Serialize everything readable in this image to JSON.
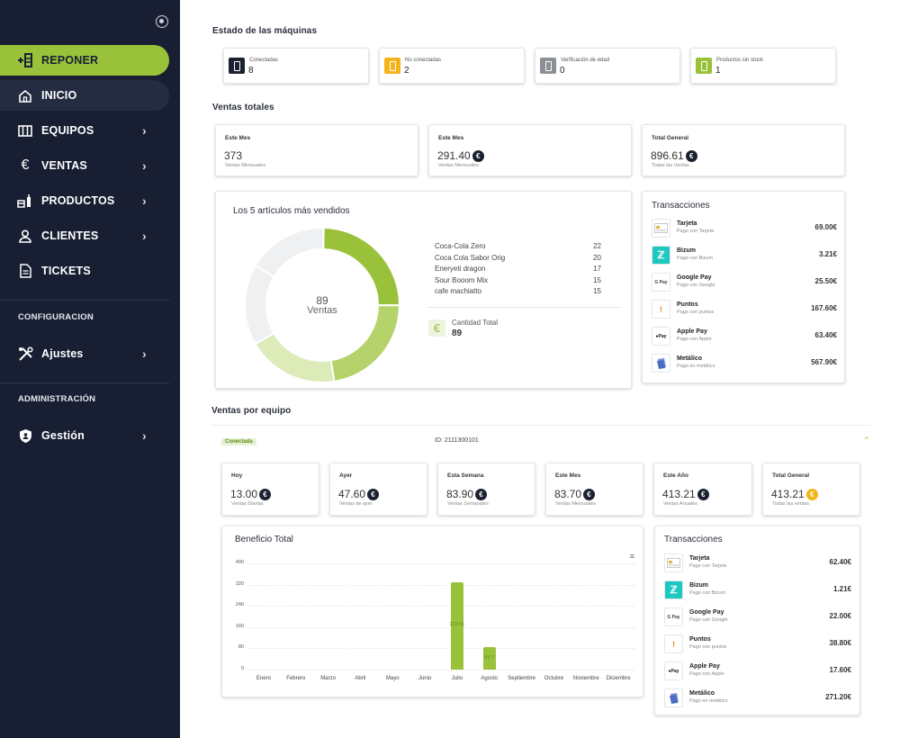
{
  "sidebar": {
    "items": [
      {
        "label": "REPONER"
      },
      {
        "label": "INICIO"
      },
      {
        "label": "EQUIPOS"
      },
      {
        "label": "VENTAS"
      },
      {
        "label": "PRODUCTOS"
      },
      {
        "label": "CLIENTES"
      },
      {
        "label": "TICKETS"
      }
    ],
    "section_config": "CONFIGURACION",
    "ajustes": "Ajustes",
    "section_admin": "ADMINISTRACIÓN",
    "gestion": "Gestión"
  },
  "estado": {
    "title": "Estado de las máquinas",
    "cards": [
      {
        "label": "Conectadas",
        "value": "8",
        "color": "#1b2130"
      },
      {
        "label": "No conectadas",
        "value": "2",
        "color": "#f3b41a"
      },
      {
        "label": "Verificación de edad",
        "value": "0",
        "color": "#8c8f96"
      },
      {
        "label": "Productos sin stock",
        "value": "1",
        "color": "#99c23a"
      }
    ]
  },
  "ventas": {
    "title": "Ventas totales",
    "cards": [
      {
        "label": "Este Mes",
        "value": "373",
        "sub": "Ventas Mensuales"
      },
      {
        "label": "Este Mes",
        "value": "291.40",
        "sub": "Ventas Mensuales"
      },
      {
        "label": "Total General",
        "value": "896.61",
        "sub": "Todas las Ventas"
      }
    ]
  },
  "top5": {
    "title": "Los 5 artículos más vendidos",
    "center_value": "89",
    "center_label": "Ventas",
    "items": [
      {
        "name": "Coca-Cola Zero",
        "value": "22"
      },
      {
        "name": "Coca Cola Sabor Orig",
        "value": "20"
      },
      {
        "name": "Eneryeti dragon",
        "value": "17"
      },
      {
        "name": "Sour Booom Mix",
        "value": "15"
      },
      {
        "name": "cafe machiatto",
        "value": "15"
      }
    ],
    "total_label": "Cantidad Total",
    "total_value": "89"
  },
  "transacciones": {
    "title": "Transacciones",
    "rows": [
      {
        "name": "Tarjeta",
        "sub": "Pago con Tarjeta",
        "value": "69.00€"
      },
      {
        "name": "Bizum",
        "sub": "Pago con Bizum",
        "value": "3.21€"
      },
      {
        "name": "Google Pay",
        "sub": "Pago con Google",
        "value": "25.50€"
      },
      {
        "name": "Puntos",
        "sub": "Pago con puntos",
        "value": "167.60€"
      },
      {
        "name": "Apple Pay",
        "sub": "Pago con Apple",
        "value": "63.40€"
      },
      {
        "name": "Metálico",
        "sub": "Pago en metálico",
        "value": "567.90€"
      }
    ]
  },
  "equipo": {
    "title": "Ventas por equipo",
    "status": "Conectada",
    "id": "ID: 2111300101",
    "cards": [
      {
        "label": "Hoy",
        "value": "13.00",
        "sub": "Ventas Diarias"
      },
      {
        "label": "Ayer",
        "value": "47.60",
        "sub": "Ventas de ayer"
      },
      {
        "label": "Esta Semana",
        "value": "83.90",
        "sub": "Ventas Semanales"
      },
      {
        "label": "Este Mes",
        "value": "83.70",
        "sub": "Ventas Mensuales"
      },
      {
        "label": "Este Año",
        "value": "413.21",
        "sub": "Ventas Anuales"
      },
      {
        "label": "Total General",
        "value": "413.21",
        "sub": "Todas las ventas"
      }
    ],
    "transacciones": {
      "title": "Transacciones",
      "rows": [
        {
          "name": "Tarjeta",
          "sub": "Pago con Tarjeta",
          "value": "62.40€"
        },
        {
          "name": "Bizum",
          "sub": "Pago con Bizum",
          "value": "1.21€"
        },
        {
          "name": "Google Pay",
          "sub": "Pago con Google",
          "value": "22.00€"
        },
        {
          "name": "Puntos",
          "sub": "Pago con puntos",
          "value": "38.80€"
        },
        {
          "name": "Apple Pay",
          "sub": "Pago con Apple",
          "value": "17.60€"
        },
        {
          "name": "Metálico",
          "sub": "Pago en metálico",
          "value": "271.20€"
        }
      ]
    }
  },
  "chart_data": [
    {
      "type": "pie",
      "title": "Los 5 artículos más vendidos",
      "categories": [
        "Coca-Cola Zero",
        "Coca Cola Sabor Orig",
        "Eneryeti dragon",
        "Sour Booom Mix",
        "cafe machiatto"
      ],
      "values": [
        22,
        20,
        17,
        15,
        15
      ],
      "colors": [
        "#99c23a",
        "#b5d36b",
        "#dcebb8",
        "#eef0f2",
        "#eef0f2"
      ]
    },
    {
      "type": "bar",
      "title": "Beneficio Total",
      "categories": [
        "Enero",
        "Febrero",
        "Marzo",
        "Abril",
        "Mayo",
        "Junio",
        "Julio",
        "Agosto",
        "Septiembre",
        "Octubre",
        "Noviembre",
        "Diciembre"
      ],
      "values": [
        0,
        0,
        0,
        0,
        0,
        0,
        329.51,
        83.7,
        0,
        0,
        0,
        0
      ],
      "bar_labels": [
        "",
        "",
        "",
        "",
        "",
        "",
        "329.51",
        "83.7",
        "",
        "",
        "",
        ""
      ],
      "yticks": [
        "0",
        "80",
        "160",
        "240",
        "320",
        "400"
      ],
      "ylim": [
        0,
        400
      ],
      "color": "#99c23a"
    }
  ]
}
